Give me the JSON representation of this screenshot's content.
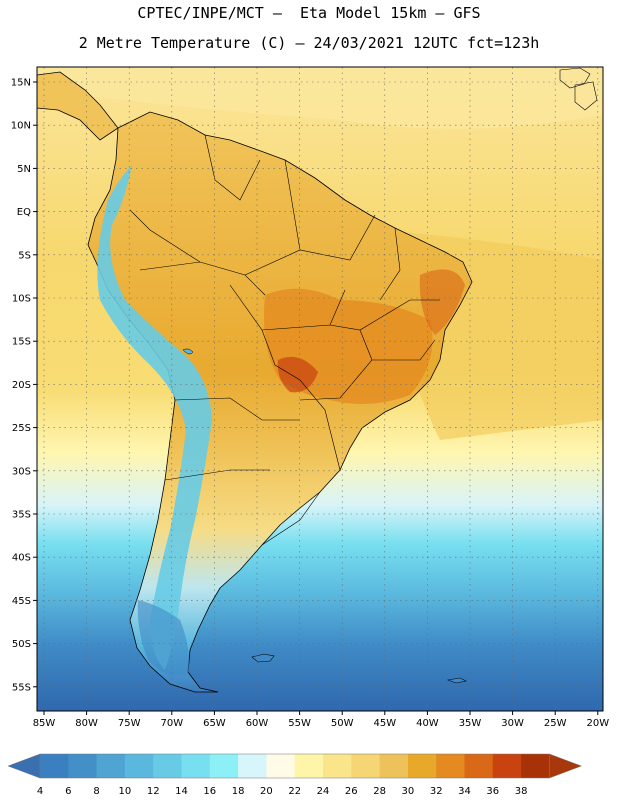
{
  "title": {
    "line1": "CPTEC/INPE/MCT –  Eta Model 15km – GFS",
    "line2": "2 Metre Temperature (C) – 24/03/2021 12UTC fct=123h"
  },
  "map": {
    "region": "South America",
    "lat_labels": [
      "15N",
      "10N",
      "5N",
      "EQ",
      "5S",
      "10S",
      "15S",
      "20S",
      "25S",
      "30S",
      "35S",
      "40S",
      "45S",
      "50S",
      "55S"
    ],
    "lon_labels": [
      "85W",
      "80W",
      "75W",
      "70W",
      "65W",
      "60W",
      "55W",
      "50W",
      "45W",
      "40W",
      "35W",
      "30W",
      "25W",
      "20W"
    ]
  },
  "colorbar": {
    "unit": "C",
    "labels": [
      "4",
      "6",
      "8",
      "10",
      "12",
      "14",
      "16",
      "18",
      "20",
      "22",
      "24",
      "26",
      "28",
      "30",
      "32",
      "34",
      "36",
      "38"
    ],
    "colors": [
      "#3a7fc0",
      "#4390c8",
      "#4fa4d2",
      "#5ab8de",
      "#67cbe6",
      "#78dff0",
      "#8cf0f6",
      "#d6f6fb",
      "#fffbe6",
      "#fff5a8",
      "#fbe58a",
      "#f5d574",
      "#eec25a",
      "#e8a82a",
      "#e48a20",
      "#d96818",
      "#c84310",
      "#a83208"
    ],
    "low_color": "#3a6fb0",
    "high_color": "#a8380c"
  }
}
